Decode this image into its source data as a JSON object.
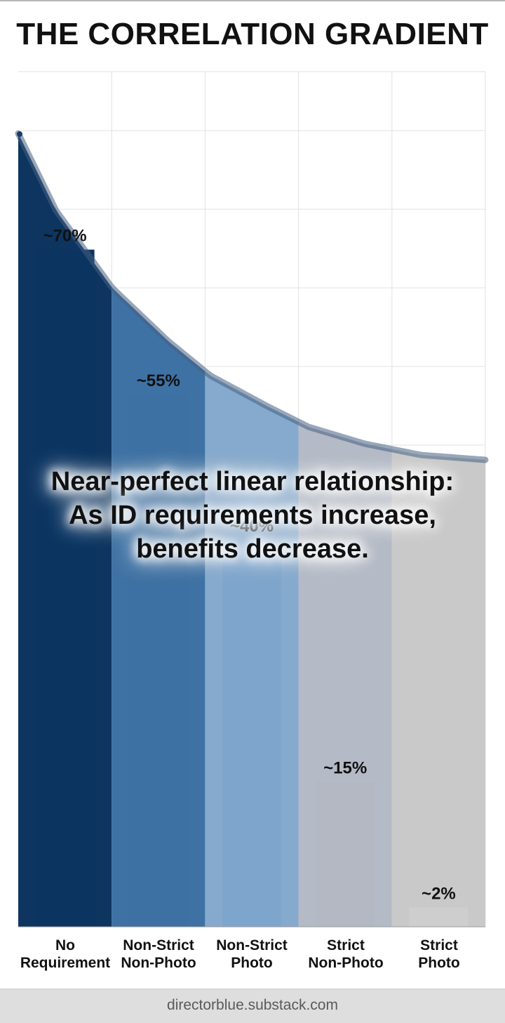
{
  "chart_data": {
    "type": "bar",
    "title": "THE CORRELATION GRADIENT",
    "categories": [
      [
        "No",
        "Requirement"
      ],
      [
        "Non-Strict",
        "Non-Photo"
      ],
      [
        "Non-Strict",
        "Photo"
      ],
      [
        "Strict",
        "Non-Photo"
      ],
      [
        "Strict",
        "Photo"
      ]
    ],
    "values": [
      70,
      55,
      40,
      15,
      2
    ],
    "data_labels": [
      "~70%",
      "~55%",
      "~40%",
      "~15%",
      "~2%"
    ],
    "band_colors": [
      "#0e3560",
      "#3f72a4",
      "#86aacd",
      "#b4bac6",
      "#c9c9c9"
    ],
    "bar_colors": [
      "#0b3461",
      "#3e71a3",
      "#7ea5cc",
      "#b3b8c3",
      "#cecece"
    ],
    "trend": "decreasing curve",
    "ylim": [
      0,
      90
    ],
    "xlabel": "",
    "ylabel": "",
    "grid": true,
    "annotation": [
      "Near-perfect linear relationship:",
      "As ID requirements increase,",
      "benefits decrease."
    ]
  },
  "footer": {
    "source": "directorblue.substack.com"
  }
}
